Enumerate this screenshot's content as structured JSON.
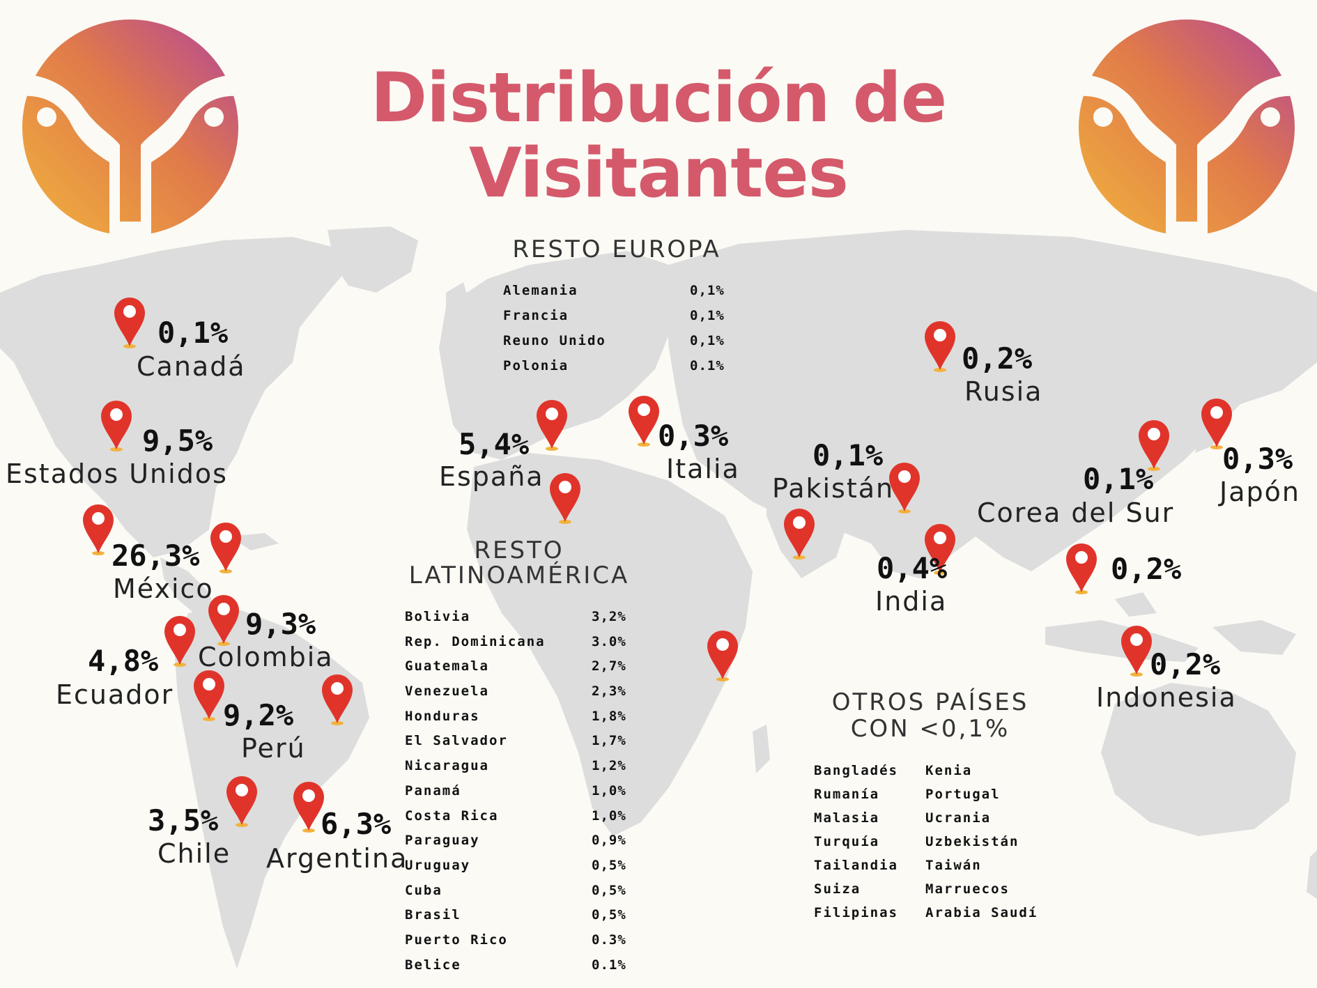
{
  "title": "Distribución de Visitantes",
  "colors": {
    "title": "#d45a6b",
    "pin": "#e0342b",
    "map_land": "#dddddd",
    "logo_gradient": [
      "#f2b33d",
      "#e07a4a",
      "#b3459a"
    ]
  },
  "icons": {
    "logo": "uterus-logo-icon",
    "marker": "map-pin-icon"
  },
  "countries": {
    "canada": {
      "name": "Canadá",
      "pct": "0,1%"
    },
    "usa": {
      "name": "Estados Unidos",
      "pct": "9,5%"
    },
    "mexico": {
      "name": "México",
      "pct": "26,3%"
    },
    "colombia": {
      "name": "Colombia",
      "pct": "9,3%"
    },
    "ecuador": {
      "name": "Ecuador",
      "pct": "4,8%"
    },
    "peru": {
      "name": "Perú",
      "pct": "9,2%"
    },
    "chile": {
      "name": "Chile",
      "pct": "3,5%"
    },
    "argentina": {
      "name": "Argentina",
      "pct": "6,3%"
    },
    "spain": {
      "name": "España",
      "pct": "5,4%"
    },
    "italy": {
      "name": "Italia",
      "pct": "0,3%"
    },
    "russia": {
      "name": "Rusia",
      "pct": "0,2%"
    },
    "pakistan": {
      "name": "Pakistán",
      "pct": "0,1%"
    },
    "india": {
      "name": "India",
      "pct": "0,4%"
    },
    "korea": {
      "name": "Corea del Sur",
      "pct": "0,1%"
    },
    "japan": {
      "name": "Japón",
      "pct": "0,3%"
    },
    "se_asia": {
      "pct": "0,2%"
    },
    "indonesia": {
      "name": "Indonesia",
      "pct": "0,2%"
    }
  },
  "resto_europa": {
    "title": "RESTO EUROPA",
    "rows": [
      {
        "name": "Alemania",
        "value": "0,1%"
      },
      {
        "name": "Francia",
        "value": "0,1%"
      },
      {
        "name": "Reuno Unido",
        "value": "0,1%"
      },
      {
        "name": "Polonia",
        "value": "0.1%"
      }
    ]
  },
  "resto_latam": {
    "title_line1": "RESTO",
    "title_line2": "LATINOAMÉRICA",
    "rows": [
      {
        "name": "Bolivia",
        "value": "3,2%"
      },
      {
        "name": "Rep. Dominicana",
        "value": "3.0%"
      },
      {
        "name": "Guatemala",
        "value": "2,7%"
      },
      {
        "name": "Venezuela",
        "value": "2,3%"
      },
      {
        "name": "Honduras",
        "value": "1,8%"
      },
      {
        "name": "El Salvador",
        "value": "1,7%"
      },
      {
        "name": "Nicaragua",
        "value": "1,2%"
      },
      {
        "name": "Panamá",
        "value": "1,0%"
      },
      {
        "name": "Costa Rica",
        "value": "1,0%"
      },
      {
        "name": "Paraguay",
        "value": "0,9%"
      },
      {
        "name": "Uruguay",
        "value": "0,5%"
      },
      {
        "name": "Cuba",
        "value": "0,5%"
      },
      {
        "name": "Brasil",
        "value": "0,5%"
      },
      {
        "name": "Puerto Rico",
        "value": "0.3%"
      },
      {
        "name": "Belice",
        "value": "0.1%"
      }
    ]
  },
  "otros": {
    "title_line1": "OTROS PAÍSES",
    "title_line2": "CON <0,1%",
    "col1": [
      "Bangladés",
      "Rumanía",
      "Malasia",
      "Turquía",
      "Tailandia",
      "Suiza",
      "Filipinas"
    ],
    "col2": [
      "Kenia",
      "Portugal",
      "Ucrania",
      "Uzbekistán",
      "Taiwán",
      "Marruecos",
      "Arabia Saudí"
    ]
  }
}
